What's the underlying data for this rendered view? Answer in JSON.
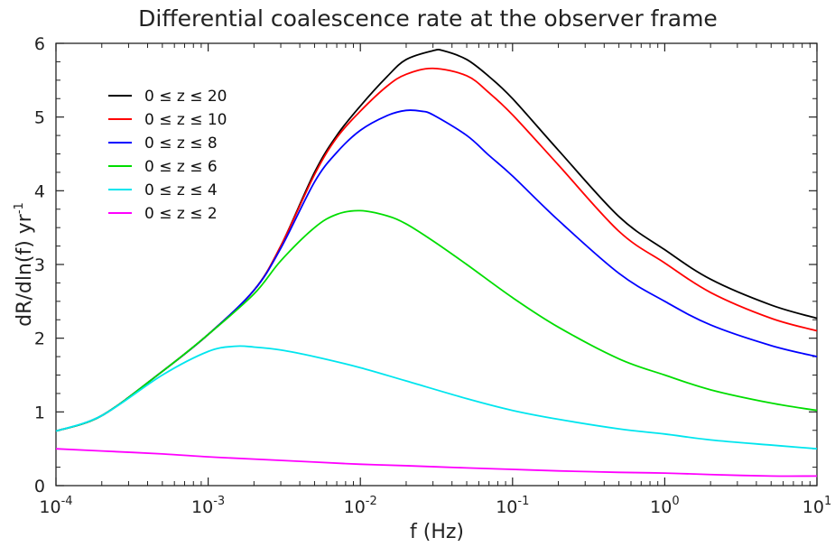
{
  "chart_data": {
    "type": "line",
    "title": "Differential coalescence rate at the observer frame",
    "xlabel": "f (Hz)",
    "ylabel": "dR/dln(f) yr",
    "ylabel_sup": "-1",
    "x_scale": "log",
    "xlim": [
      0.0001,
      10
    ],
    "ylim": [
      0,
      6
    ],
    "x_ticks": [
      {
        "base": "10",
        "exp": "-4",
        "value": -4
      },
      {
        "base": "10",
        "exp": "-3",
        "value": -3
      },
      {
        "base": "10",
        "exp": "-2",
        "value": -2
      },
      {
        "base": "10",
        "exp": "-1",
        "value": -1
      },
      {
        "base": "10",
        "exp": "0",
        "value": 0
      },
      {
        "base": "10",
        "exp": "1",
        "value": 1
      }
    ],
    "y_ticks": [
      0,
      1,
      2,
      3,
      4,
      5,
      6
    ],
    "grid": false,
    "legend_position": "top-left",
    "series": [
      {
        "name": "0 ≤ z ≤ 20",
        "color": "#000000",
        "x": [
          0.0001,
          0.0002,
          0.0005,
          0.001,
          0.002,
          0.003,
          0.005,
          0.007,
          0.01,
          0.015,
          0.02,
          0.03,
          0.035,
          0.05,
          0.07,
          0.1,
          0.2,
          0.5,
          1,
          2,
          5,
          10
        ],
        "y": [
          0.74,
          0.95,
          1.55,
          2.05,
          2.65,
          3.25,
          4.25,
          4.75,
          5.15,
          5.55,
          5.78,
          5.9,
          5.9,
          5.78,
          5.55,
          5.25,
          4.55,
          3.65,
          3.2,
          2.8,
          2.45,
          2.27
        ]
      },
      {
        "name": "0 ≤ z ≤ 10",
        "color": "#ff0000",
        "x": [
          0.0001,
          0.0002,
          0.0005,
          0.001,
          0.002,
          0.003,
          0.005,
          0.007,
          0.01,
          0.015,
          0.02,
          0.03,
          0.05,
          0.07,
          0.1,
          0.2,
          0.5,
          1,
          2,
          5,
          10
        ],
        "y": [
          0.74,
          0.95,
          1.55,
          2.05,
          2.65,
          3.25,
          4.22,
          4.72,
          5.08,
          5.42,
          5.58,
          5.66,
          5.56,
          5.33,
          5.03,
          4.35,
          3.45,
          3.02,
          2.62,
          2.27,
          2.1
        ]
      },
      {
        "name": "0 ≤ z ≤ 8",
        "color": "#0000ff",
        "x": [
          0.0001,
          0.0002,
          0.0005,
          0.001,
          0.002,
          0.003,
          0.005,
          0.007,
          0.01,
          0.015,
          0.02,
          0.025,
          0.03,
          0.05,
          0.07,
          0.1,
          0.2,
          0.5,
          1,
          2,
          5,
          10
        ],
        "y": [
          0.74,
          0.95,
          1.55,
          2.05,
          2.65,
          3.22,
          4.12,
          4.52,
          4.82,
          5.02,
          5.09,
          5.08,
          5.03,
          4.75,
          4.48,
          4.2,
          3.6,
          2.88,
          2.5,
          2.18,
          1.9,
          1.75
        ]
      },
      {
        "name": "0 ≤ z ≤  6",
        "color": "#00dd00",
        "x": [
          0.0001,
          0.0002,
          0.0005,
          0.001,
          0.002,
          0.003,
          0.005,
          0.007,
          0.01,
          0.015,
          0.02,
          0.03,
          0.05,
          0.1,
          0.2,
          0.5,
          1,
          2,
          5,
          10
        ],
        "y": [
          0.74,
          0.95,
          1.55,
          2.05,
          2.6,
          3.05,
          3.5,
          3.68,
          3.73,
          3.66,
          3.55,
          3.32,
          3.0,
          2.55,
          2.15,
          1.72,
          1.5,
          1.3,
          1.12,
          1.02
        ]
      },
      {
        "name": "0 ≤ z ≤  4",
        "color": "#00e5ee",
        "x": [
          0.0001,
          0.0002,
          0.0005,
          0.001,
          0.0015,
          0.002,
          0.003,
          0.005,
          0.01,
          0.02,
          0.05,
          0.1,
          0.2,
          0.5,
          1,
          2,
          5,
          10
        ],
        "y": [
          0.74,
          0.95,
          1.5,
          1.82,
          1.89,
          1.88,
          1.84,
          1.75,
          1.6,
          1.42,
          1.18,
          1.02,
          0.9,
          0.77,
          0.7,
          0.62,
          0.55,
          0.5
        ]
      },
      {
        "name": "0 ≤ z ≤  2",
        "color": "#ff00ff",
        "x": [
          0.0001,
          0.0002,
          0.0005,
          0.001,
          0.002,
          0.005,
          0.01,
          0.02,
          0.05,
          0.1,
          0.2,
          0.5,
          1,
          2,
          5,
          10
        ],
        "y": [
          0.5,
          0.47,
          0.43,
          0.39,
          0.36,
          0.32,
          0.29,
          0.27,
          0.24,
          0.22,
          0.2,
          0.18,
          0.17,
          0.15,
          0.13,
          0.13
        ]
      }
    ]
  }
}
